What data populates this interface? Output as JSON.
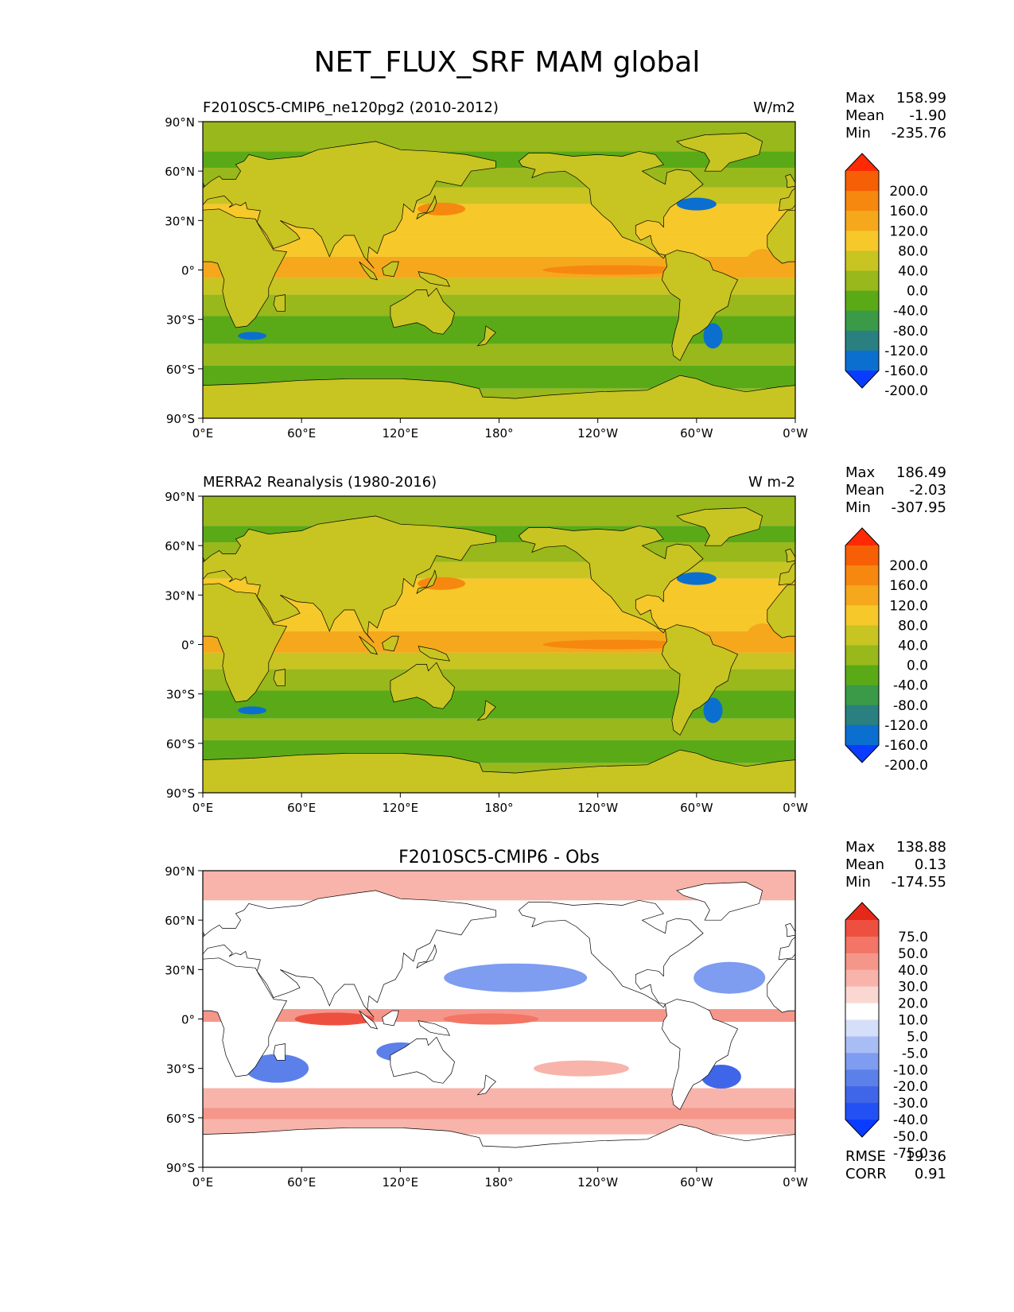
{
  "figure": {
    "title": "NET_FLUX_SRF MAM global"
  },
  "colors": {
    "fullfield": [
      "#0a3cff",
      "#0b6fd0",
      "#2a8080",
      "#3a9a48",
      "#5aaa18",
      "#98b81c",
      "#c8c422",
      "#f6c82a",
      "#f5a81c",
      "#f68810",
      "#f65f05",
      "#ff2a05"
    ],
    "diff": [
      "#0a3cff",
      "#2350f5",
      "#3f66e8",
      "#5b80ea",
      "#7e9cf0",
      "#a9bdf5",
      "#d5dffa",
      "#ffffff",
      "#fbd7d2",
      "#f8b4aa",
      "#f5968a",
      "#f27565",
      "#ee5040",
      "#e62818"
    ],
    "land": "#ffffff",
    "coast": "#000000"
  },
  "panels": [
    {
      "id": "test",
      "left_title": "F2010SC5-CMIP6_ne120pg2 (2010-2012)",
      "center_title": "",
      "right_title": "W/m2",
      "stats": [
        {
          "label": "Max",
          "value": "158.99"
        },
        {
          "label": "Mean",
          "value": "-1.90"
        },
        {
          "label": "Min",
          "value": "-235.76"
        }
      ],
      "extra_stats": [],
      "colorbar_ticks": [
        "200.0",
        "160.0",
        "120.0",
        "80.0",
        "40.0",
        "0.0",
        "-40.0",
        "-80.0",
        "-120.0",
        "-160.0",
        "-200.0"
      ],
      "palette": "fullfield"
    },
    {
      "id": "ref",
      "left_title": "MERRA2 Reanalysis (1980-2016)",
      "center_title": "",
      "right_title": "W m-2",
      "stats": [
        {
          "label": "Max",
          "value": "186.49"
        },
        {
          "label": "Mean",
          "value": "-2.03"
        },
        {
          "label": "Min",
          "value": "-307.95"
        }
      ],
      "extra_stats": [],
      "colorbar_ticks": [
        "200.0",
        "160.0",
        "120.0",
        "80.0",
        "40.0",
        "0.0",
        "-40.0",
        "-80.0",
        "-120.0",
        "-160.0",
        "-200.0"
      ],
      "palette": "fullfield"
    },
    {
      "id": "diff",
      "left_title": "",
      "center_title": "F2010SC5-CMIP6 - Obs",
      "right_title": "",
      "stats": [
        {
          "label": "Max",
          "value": "138.88"
        },
        {
          "label": "Mean",
          "value": "0.13"
        },
        {
          "label": "Min",
          "value": "-174.55"
        }
      ],
      "extra_stats": [
        {
          "label": "RMSE",
          "value": "19.36"
        },
        {
          "label": "CORR",
          "value": "0.91"
        }
      ],
      "colorbar_ticks": [
        "75.0",
        "50.0",
        "40.0",
        "30.0",
        "20.0",
        "10.0",
        "5.0",
        "-5.0",
        "-10.0",
        "-20.0",
        "-30.0",
        "-40.0",
        "-50.0",
        "-75.0"
      ],
      "palette": "diff"
    }
  ],
  "axes": {
    "lat_ticks": [
      "90°N",
      "60°N",
      "30°N",
      "0°",
      "30°S",
      "60°S",
      "90°S"
    ],
    "lon_ticks": [
      "0°E",
      "60°E",
      "120°E",
      "180°",
      "120°W",
      "60°W",
      "0°W"
    ]
  }
}
